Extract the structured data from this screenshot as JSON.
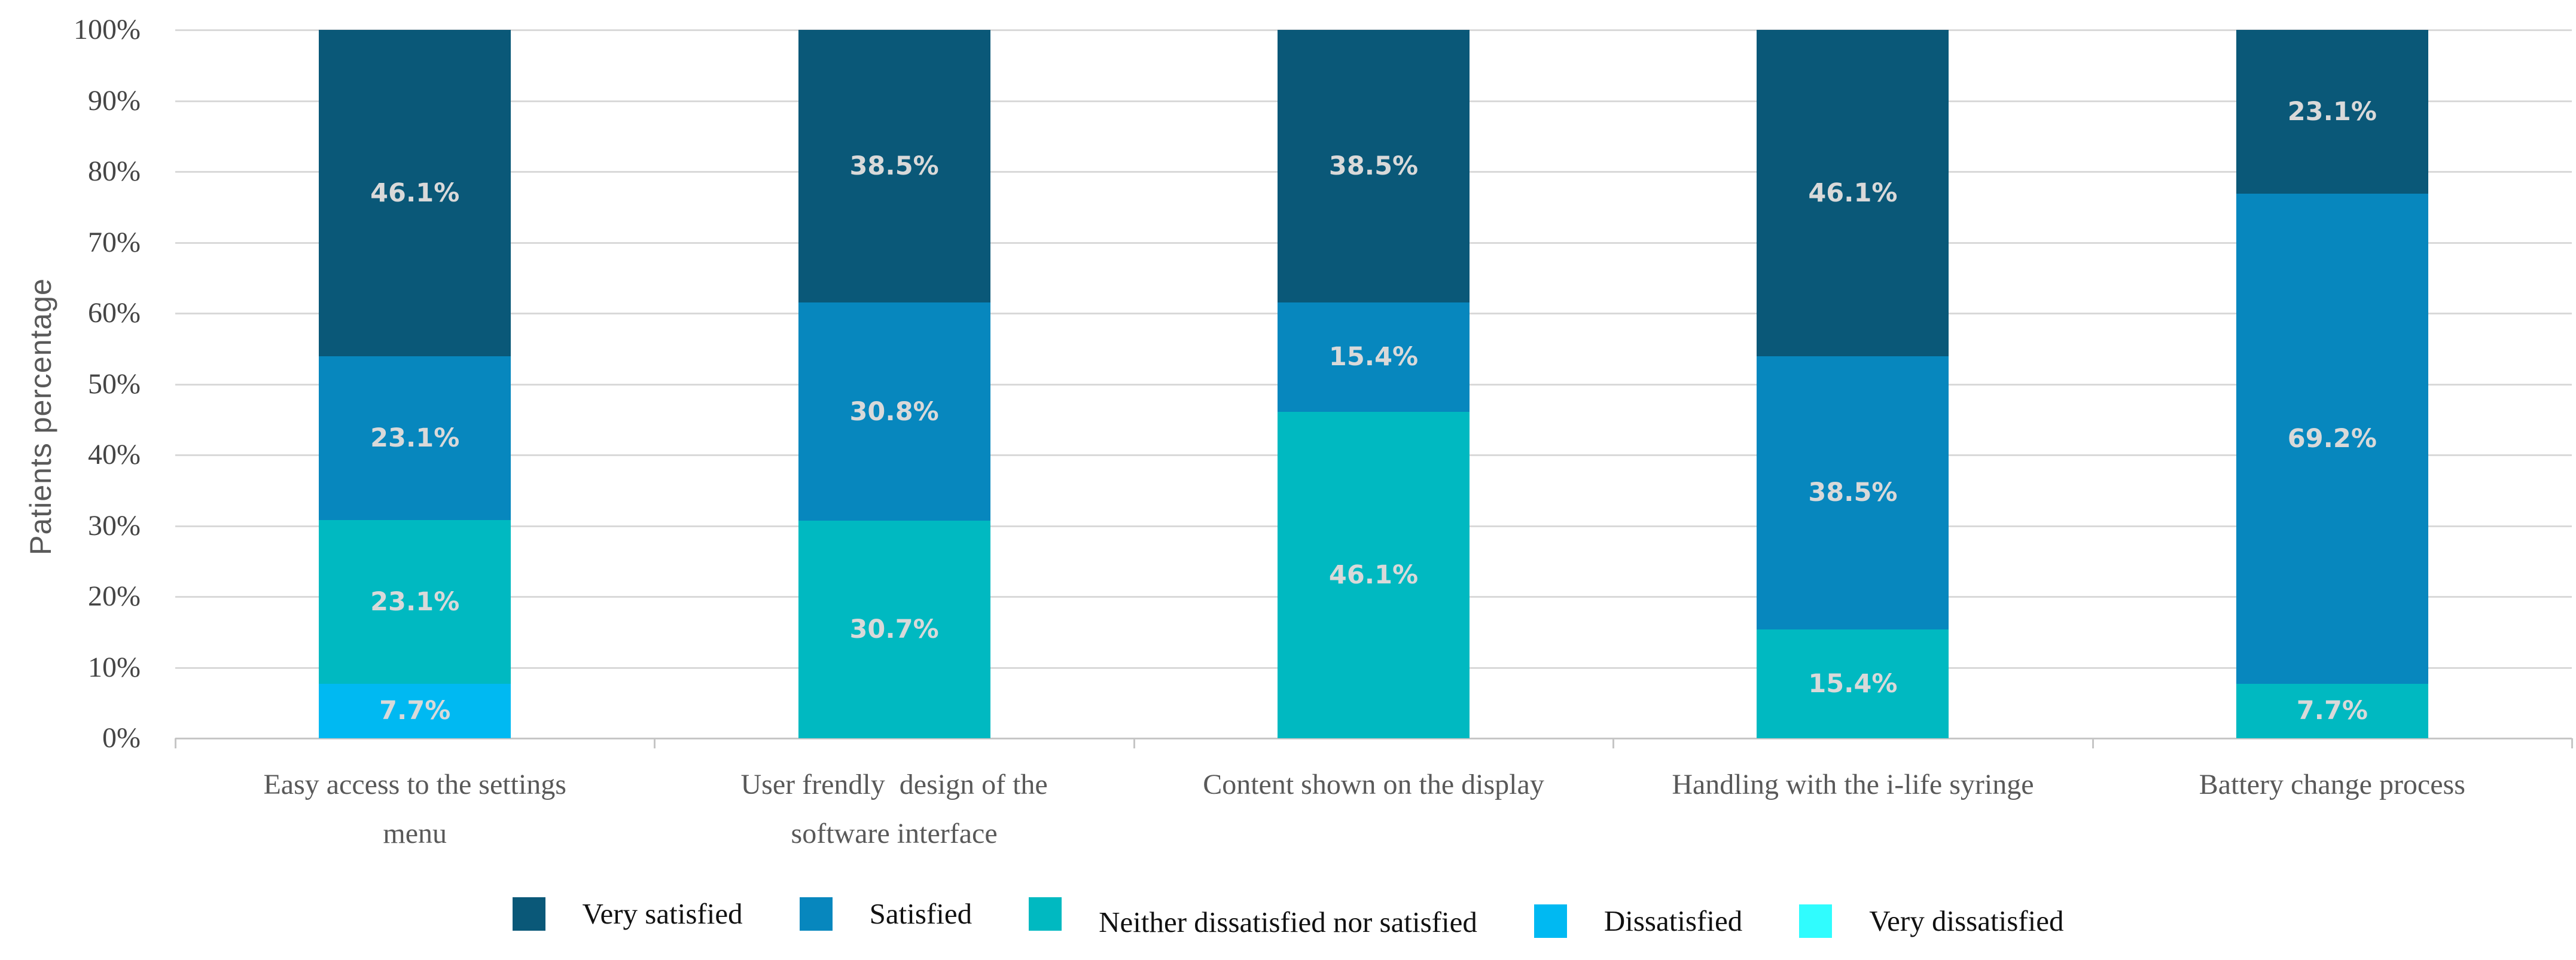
{
  "chart_data": {
    "type": "bar",
    "stacked": true,
    "stacked_percent": true,
    "title": "",
    "xlabel": "",
    "ylabel": "Patients percentage",
    "ylim": [
      0,
      100
    ],
    "ytick_step": 10,
    "ytick_labels": [
      "0%",
      "10%",
      "20%",
      "30%",
      "40%",
      "50%",
      "60%",
      "70%",
      "80%",
      "90%",
      "100%"
    ],
    "grid": true,
    "legend_position": "bottom",
    "categories": [
      "Easy access to the settings\nmenu",
      "User frendly  design of the\nsoftware interface",
      "Content shown on the display",
      "Handling with the i-life syringe",
      "Battery change process"
    ],
    "series": [
      {
        "name": "Very satisfied",
        "color": "#0a5878",
        "values": [
          46.1,
          38.5,
          38.5,
          46.1,
          23.1
        ]
      },
      {
        "name": "Satisfied",
        "color": "#0787be",
        "values": [
          23.1,
          30.8,
          15.4,
          38.5,
          69.2
        ]
      },
      {
        "name": "Neither dissatisfied nor satisfied",
        "color": "#00b9c1",
        "values": [
          23.1,
          30.7,
          46.1,
          15.4,
          7.7
        ]
      },
      {
        "name": "Dissatisfied",
        "color": "#00b9f2",
        "values": [
          7.7,
          0,
          0,
          0,
          0
        ]
      },
      {
        "name": "Very dissatisfied",
        "color": "#30fcfe",
        "values": [
          0,
          0,
          0,
          0,
          0
        ]
      }
    ],
    "data_label_suffix": "%",
    "colors": {
      "gridline": "#d9d9d9",
      "axis": "#c6c6c6",
      "data_label": "#d9d9d9",
      "axis_text": "#454545",
      "category_text": "#595959",
      "legend_text": "#111111"
    }
  }
}
